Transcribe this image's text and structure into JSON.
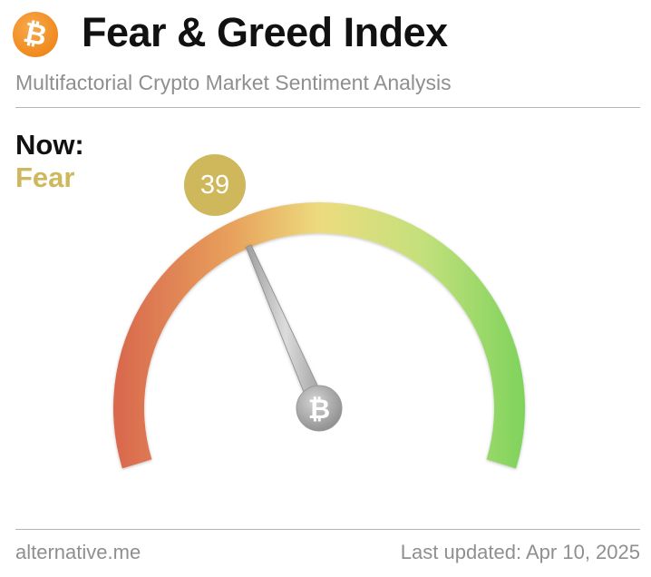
{
  "header": {
    "logo_glyph": "₿",
    "logo_icon": "bitcoin-logo-icon",
    "title": "Fear & Greed Index",
    "subtitle": "Multifactorial Crypto Market Sentiment Analysis"
  },
  "status": {
    "now_label": "Now:",
    "now_value": "Fear",
    "value_color": "#cfb85c"
  },
  "gauge": {
    "value": 39,
    "min": 0,
    "max": 100,
    "value_label": "39",
    "needle_icon": "bitcoin-hub-icon",
    "hub_glyph": "₿",
    "colors": {
      "extreme_fear": "#d9694e",
      "fear": "#e8a15c",
      "neutral": "#ecdc7e",
      "greed": "#c4e07c",
      "extreme_greed": "#7fd35c"
    }
  },
  "footer": {
    "source": "alternative.me",
    "last_updated": "Last updated: Apr 10, 2025"
  }
}
